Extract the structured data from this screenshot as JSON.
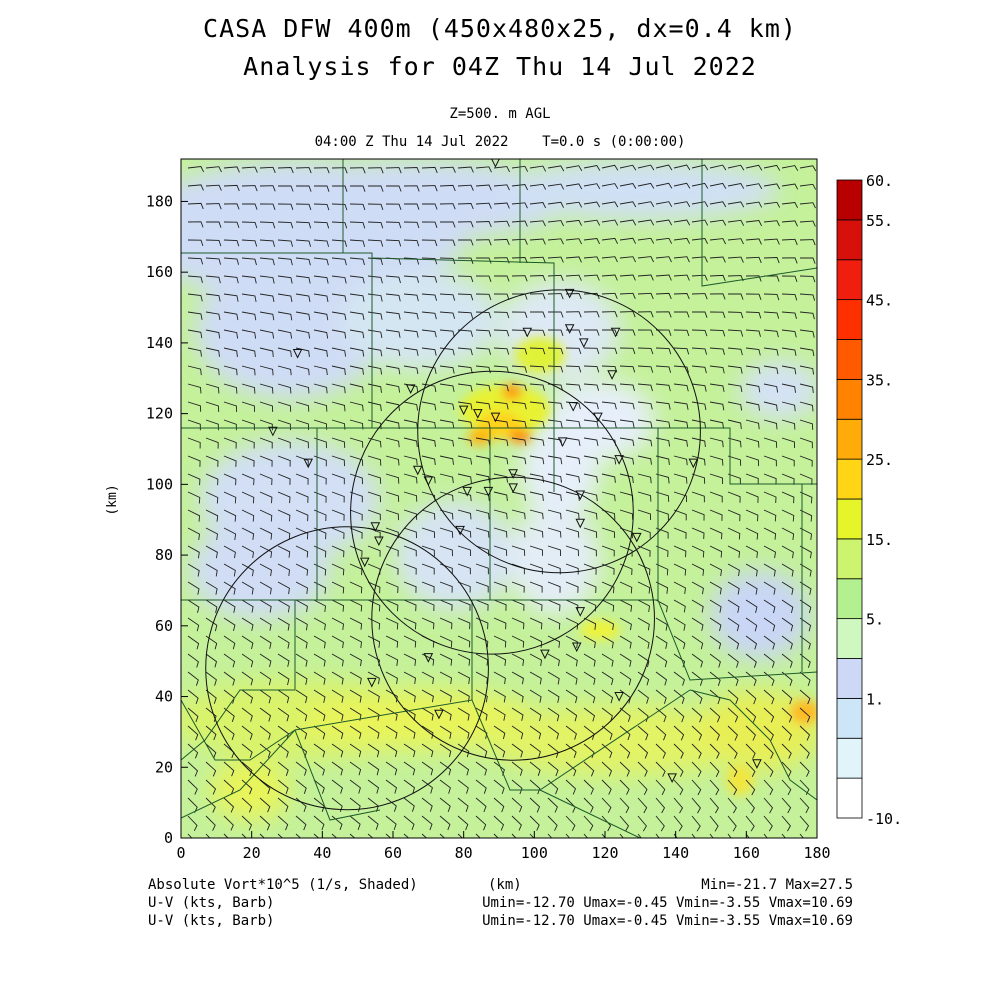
{
  "header": {
    "title_line1": "CASA DFW 400m (450x480x25, dx=0.4 km)",
    "title_line2": "Analysis for 04Z Thu 14 Jul 2022",
    "level": "Z=500. m AGL",
    "valid_time": "04:00 Z Thu 14 Jul 2022    T=0.0 s (0:00:00)"
  },
  "footer": {
    "shaded_field": "Absolute Vort*10^5 (1/s, Shaded)",
    "x_unit": "(km)",
    "minmax": "Min=-21.7 Max=27.5",
    "barb1_label": "U-V (kts, Barb)",
    "barb1_stats": "Umin=-12.70 Umax=-0.45 Vmin=-3.55 Vmax=10.69",
    "barb2_label": "U-V (kts, Barb)",
    "barb2_stats": "Umin=-12.70 Umax=-0.45 Vmin=-3.55 Vmax=10.69"
  },
  "chart_data": {
    "type": "heatmap",
    "xlabel": "",
    "ylabel": "(km)",
    "xlim": [
      0,
      180
    ],
    "ylim": [
      0,
      192
    ],
    "x_ticks": [
      0,
      20,
      40,
      60,
      80,
      100,
      120,
      140,
      160,
      180
    ],
    "y_ticks": [
      0,
      20,
      40,
      60,
      80,
      100,
      120,
      140,
      160,
      180
    ],
    "colorbar": {
      "labels": [
        "60.",
        "55.",
        "45.",
        "35.",
        "25.",
        "15.",
        "5.",
        "1.",
        "-10."
      ],
      "colors": [
        "#ffffff",
        "#e0f4fa",
        "#cde6f7",
        "#ccd8f5",
        "#cff7c0",
        "#b3f08f",
        "#ccf46e",
        "#e6f52a",
        "#ffd515",
        "#ffab0a",
        "#ff8200",
        "#ff5a00",
        "#ff3000",
        "#ef1e0e",
        "#d8100c",
        "#b80000"
      ]
    },
    "radar_coverage_circles": [
      {
        "cx": 107,
        "cy": 115,
        "r": 40
      },
      {
        "cx": 88,
        "cy": 92,
        "r": 40
      },
      {
        "cx": 94,
        "cy": 62,
        "r": 40
      },
      {
        "cx": 47,
        "cy": 48,
        "r": 40
      }
    ],
    "stations": [
      [
        89,
        191
      ],
      [
        110,
        154
      ],
      [
        110,
        144
      ],
      [
        98,
        143
      ],
      [
        123,
        143
      ],
      [
        122,
        131
      ],
      [
        114,
        140
      ],
      [
        33,
        137
      ],
      [
        65,
        127
      ],
      [
        111,
        122
      ],
      [
        118,
        119
      ],
      [
        80,
        121
      ],
      [
        84,
        120
      ],
      [
        89,
        119
      ],
      [
        26,
        115
      ],
      [
        108,
        112
      ],
      [
        124,
        107
      ],
      [
        145,
        106
      ],
      [
        36,
        106
      ],
      [
        67,
        104
      ],
      [
        70,
        101
      ],
      [
        94,
        103
      ],
      [
        87,
        98
      ],
      [
        81,
        98
      ],
      [
        94,
        99
      ],
      [
        113,
        97
      ],
      [
        79,
        87
      ],
      [
        113,
        89
      ],
      [
        129,
        85
      ],
      [
        55,
        88
      ],
      [
        56,
        84
      ],
      [
        52,
        78
      ],
      [
        113,
        64
      ],
      [
        112,
        54
      ],
      [
        70,
        51
      ],
      [
        103,
        52
      ],
      [
        54,
        44
      ],
      [
        124,
        40
      ],
      [
        73,
        35
      ],
      [
        139,
        17
      ],
      [
        163,
        21
      ]
    ],
    "wind_barb_uv_range_kts": {
      "umin": -12.7,
      "umax": -0.45,
      "vmin": -3.55,
      "vmax": 10.69
    },
    "shaded_minmax": {
      "min": -21.7,
      "max": 27.5
    }
  }
}
